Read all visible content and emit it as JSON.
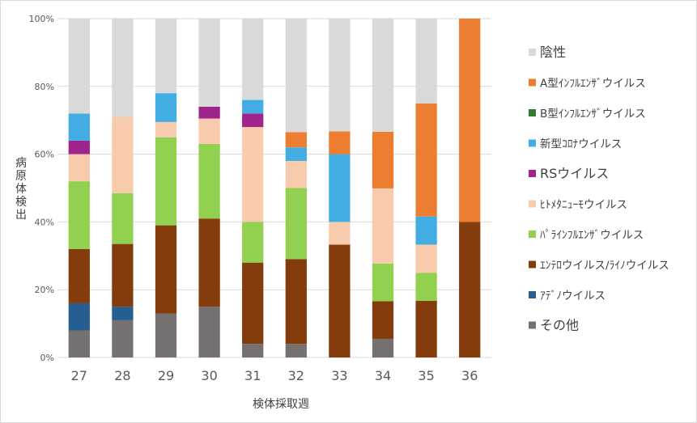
{
  "chart_data": {
    "type": "bar",
    "stacked": "percent",
    "xlabel": "検体採取週",
    "ylabel": "病原体検出",
    "ylim": [
      0,
      100
    ],
    "yticks": [
      "0%",
      "20%",
      "40%",
      "60%",
      "80%",
      "100%"
    ],
    "grid": true,
    "legend_position": "right",
    "categories": [
      "27",
      "28",
      "29",
      "30",
      "31",
      "32",
      "33",
      "34",
      "35",
      "36"
    ],
    "series": [
      {
        "name": "その他",
        "color": "#767171",
        "values": [
          8,
          11,
          13,
          15,
          4,
          4,
          0,
          5.5,
          0,
          0
        ]
      },
      {
        "name": "ｱﾃﾞﾉウイルス",
        "color": "#255E91",
        "values": [
          8,
          4,
          0,
          0,
          0,
          0,
          0,
          0,
          0,
          0
        ]
      },
      {
        "name": "ｴﾝﾃﾛウイルス/ﾗｲﾉウイルス",
        "color": "#843C0C",
        "values": [
          16,
          18.5,
          26,
          26,
          24,
          25,
          33.3,
          11.1,
          16.7,
          40
        ]
      },
      {
        "name": "ﾊﾟﾗｲﾝﾌﾙｴﾝｻﾞウイルス",
        "color": "#92D050",
        "values": [
          20,
          15,
          26,
          22,
          12,
          21,
          0,
          11.1,
          8.3,
          0
        ]
      },
      {
        "name": "ﾋﾄﾒﾀﾆｭｰﾓウイルス",
        "color": "#F8CBAD",
        "values": [
          8,
          22.5,
          4.5,
          7.5,
          28,
          8,
          6.7,
          22.2,
          8.3,
          0
        ]
      },
      {
        "name": "RSウイルス",
        "color": "#A0248E",
        "values": [
          4,
          0,
          0,
          3.5,
          4,
          0,
          0,
          0,
          0,
          0
        ]
      },
      {
        "name": "新型ｺﾛﾅウイルス",
        "color": "#42ADE2",
        "values": [
          8,
          0,
          8.5,
          0,
          4,
          4,
          20,
          0,
          8.3,
          0
        ]
      },
      {
        "name": "B型ｲﾝﾌﾙｴﾝｻﾞウイルス",
        "color": "#2E7D32",
        "values": [
          0,
          0,
          0,
          0,
          0,
          0,
          0,
          0,
          0,
          0
        ]
      },
      {
        "name": "A型ｲﾝﾌﾙｴﾝｻﾞウイルス",
        "color": "#ED7D31",
        "values": [
          0,
          0,
          0,
          0,
          0,
          4.5,
          6.7,
          16.7,
          33.4,
          60
        ]
      },
      {
        "name": "陰性",
        "color": "#D9D9D9",
        "values": [
          28,
          29,
          22,
          26,
          24,
          33.5,
          33.3,
          33.4,
          25,
          0
        ]
      }
    ]
  }
}
